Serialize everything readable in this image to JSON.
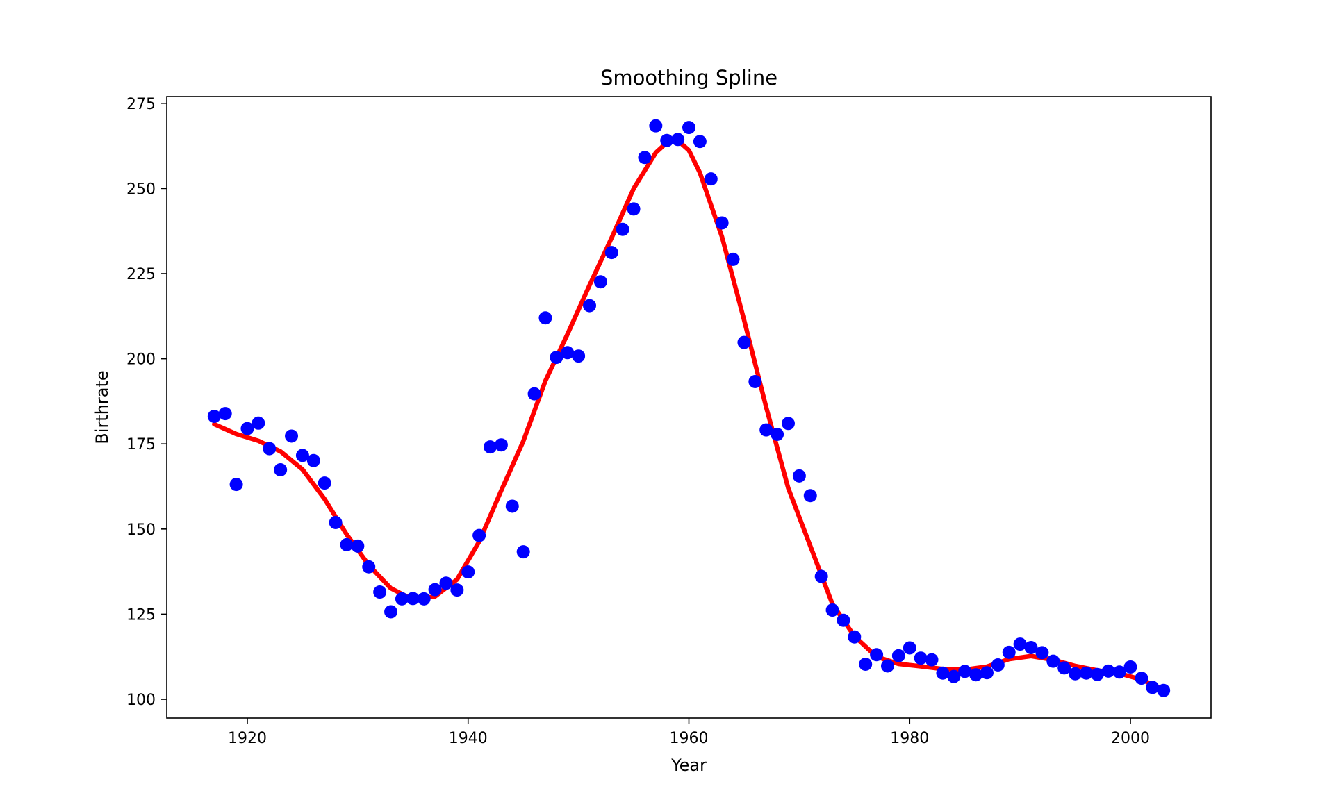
{
  "chart_data": {
    "type": "scatter",
    "title": "Smoothing Spline",
    "xlabel": "Year",
    "ylabel": "Birthrate",
    "xlim": [
      1912.7,
      2007.3
    ],
    "ylim": [
      94.5,
      277.0
    ],
    "xticks": [
      1920,
      1940,
      1960,
      1980,
      2000
    ],
    "xtick_labels": [
      "1920",
      "1940",
      "1960",
      "1980",
      "2000"
    ],
    "yticks": [
      100,
      125,
      150,
      175,
      200,
      225,
      250,
      275
    ],
    "ytick_labels": [
      "100",
      "125",
      "150",
      "175",
      "200",
      "225",
      "250",
      "275"
    ],
    "grid": false,
    "legend": "none",
    "series": [
      {
        "kind": "scatter",
        "color": "#0000ff",
        "points": [
          [
            1917,
            183.1
          ],
          [
            1918,
            183.9
          ],
          [
            1919,
            163.1
          ],
          [
            1920,
            179.5
          ],
          [
            1921,
            181.1
          ],
          [
            1922,
            173.6
          ],
          [
            1923,
            167.4
          ],
          [
            1924,
            177.3
          ],
          [
            1925,
            171.6
          ],
          [
            1926,
            170.1
          ],
          [
            1927,
            163.5
          ],
          [
            1928,
            151.9
          ],
          [
            1929,
            145.4
          ],
          [
            1930,
            145.0
          ],
          [
            1931,
            138.9
          ],
          [
            1932,
            131.5
          ],
          [
            1933,
            125.7
          ],
          [
            1934,
            129.5
          ],
          [
            1935,
            129.6
          ],
          [
            1936,
            129.5
          ],
          [
            1937,
            132.2
          ],
          [
            1938,
            134.1
          ],
          [
            1939,
            132.1
          ],
          [
            1940,
            137.4
          ],
          [
            1941,
            148.1
          ],
          [
            1942,
            174.1
          ],
          [
            1943,
            174.7
          ],
          [
            1944,
            156.7
          ],
          [
            1945,
            143.3
          ],
          [
            1946,
            189.7
          ],
          [
            1947,
            212.0
          ],
          [
            1948,
            200.4
          ],
          [
            1949,
            201.8
          ],
          [
            1950,
            200.8
          ],
          [
            1951,
            215.6
          ],
          [
            1952,
            222.6
          ],
          [
            1953,
            231.2
          ],
          [
            1954,
            238.0
          ],
          [
            1955,
            244.0
          ],
          [
            1956,
            259.1
          ],
          [
            1957,
            268.4
          ],
          [
            1958,
            264.1
          ],
          [
            1959,
            264.4
          ],
          [
            1960,
            267.9
          ],
          [
            1961,
            263.8
          ],
          [
            1962,
            252.8
          ],
          [
            1963,
            239.9
          ],
          [
            1964,
            229.2
          ],
          [
            1965,
            204.8
          ],
          [
            1966,
            193.3
          ],
          [
            1967,
            179.1
          ],
          [
            1968,
            177.8
          ],
          [
            1969,
            181.0
          ],
          [
            1970,
            165.6
          ],
          [
            1971,
            159.8
          ],
          [
            1972,
            136.1
          ],
          [
            1973,
            126.2
          ],
          [
            1974,
            123.2
          ],
          [
            1975,
            118.3
          ],
          [
            1976,
            110.3
          ],
          [
            1977,
            113.1
          ],
          [
            1978,
            109.8
          ],
          [
            1979,
            112.8
          ],
          [
            1980,
            115.1
          ],
          [
            1981,
            112.1
          ],
          [
            1982,
            111.6
          ],
          [
            1983,
            107.7
          ],
          [
            1984,
            106.7
          ],
          [
            1985,
            108.2
          ],
          [
            1986,
            107.2
          ],
          [
            1987,
            107.8
          ],
          [
            1988,
            110.1
          ],
          [
            1989,
            113.8
          ],
          [
            1990,
            116.2
          ],
          [
            1991,
            115.2
          ],
          [
            1992,
            113.7
          ],
          [
            1993,
            111.2
          ],
          [
            1994,
            109.2
          ],
          [
            1995,
            107.5
          ],
          [
            1996,
            107.7
          ],
          [
            1997,
            107.3
          ],
          [
            1998,
            108.3
          ],
          [
            1999,
            108.0
          ],
          [
            2000,
            109.5
          ],
          [
            2001,
            106.2
          ],
          [
            2002,
            103.5
          ],
          [
            2003,
            102.6
          ]
        ]
      },
      {
        "kind": "line",
        "color": "#ff0000",
        "points": [
          [
            1917,
            180.8
          ],
          [
            1919,
            177.9
          ],
          [
            1921,
            175.9
          ],
          [
            1923,
            172.8
          ],
          [
            1925,
            167.5
          ],
          [
            1927,
            158.8
          ],
          [
            1929,
            148.4
          ],
          [
            1931,
            139.4
          ],
          [
            1933,
            132.6
          ],
          [
            1935,
            129.3
          ],
          [
            1937,
            130.2
          ],
          [
            1939,
            135.2
          ],
          [
            1941,
            146.3
          ],
          [
            1943,
            161.3
          ],
          [
            1945,
            175.8
          ],
          [
            1947,
            193.5
          ],
          [
            1949,
            207.2
          ],
          [
            1951,
            221.6
          ],
          [
            1953,
            235.5
          ],
          [
            1955,
            250.0
          ],
          [
            1957,
            260.5
          ],
          [
            1958,
            263.5
          ],
          [
            1959,
            264.1
          ],
          [
            1960,
            261.2
          ],
          [
            1961,
            254.6
          ],
          [
            1963,
            235.8
          ],
          [
            1965,
            211.4
          ],
          [
            1967,
            185.8
          ],
          [
            1969,
            162.0
          ],
          [
            1971,
            145.0
          ],
          [
            1973,
            128.0
          ],
          [
            1975,
            118.5
          ],
          [
            1977,
            112.5
          ],
          [
            1979,
            110.4
          ],
          [
            1981,
            109.7
          ],
          [
            1983,
            108.9
          ],
          [
            1985,
            108.7
          ],
          [
            1987,
            109.6
          ],
          [
            1989,
            111.8
          ],
          [
            1991,
            112.7
          ],
          [
            1993,
            111.6
          ],
          [
            1995,
            109.8
          ],
          [
            1997,
            108.5
          ],
          [
            1999,
            107.6
          ],
          [
            2001,
            105.8
          ],
          [
            2003,
            102.9
          ]
        ]
      }
    ]
  }
}
